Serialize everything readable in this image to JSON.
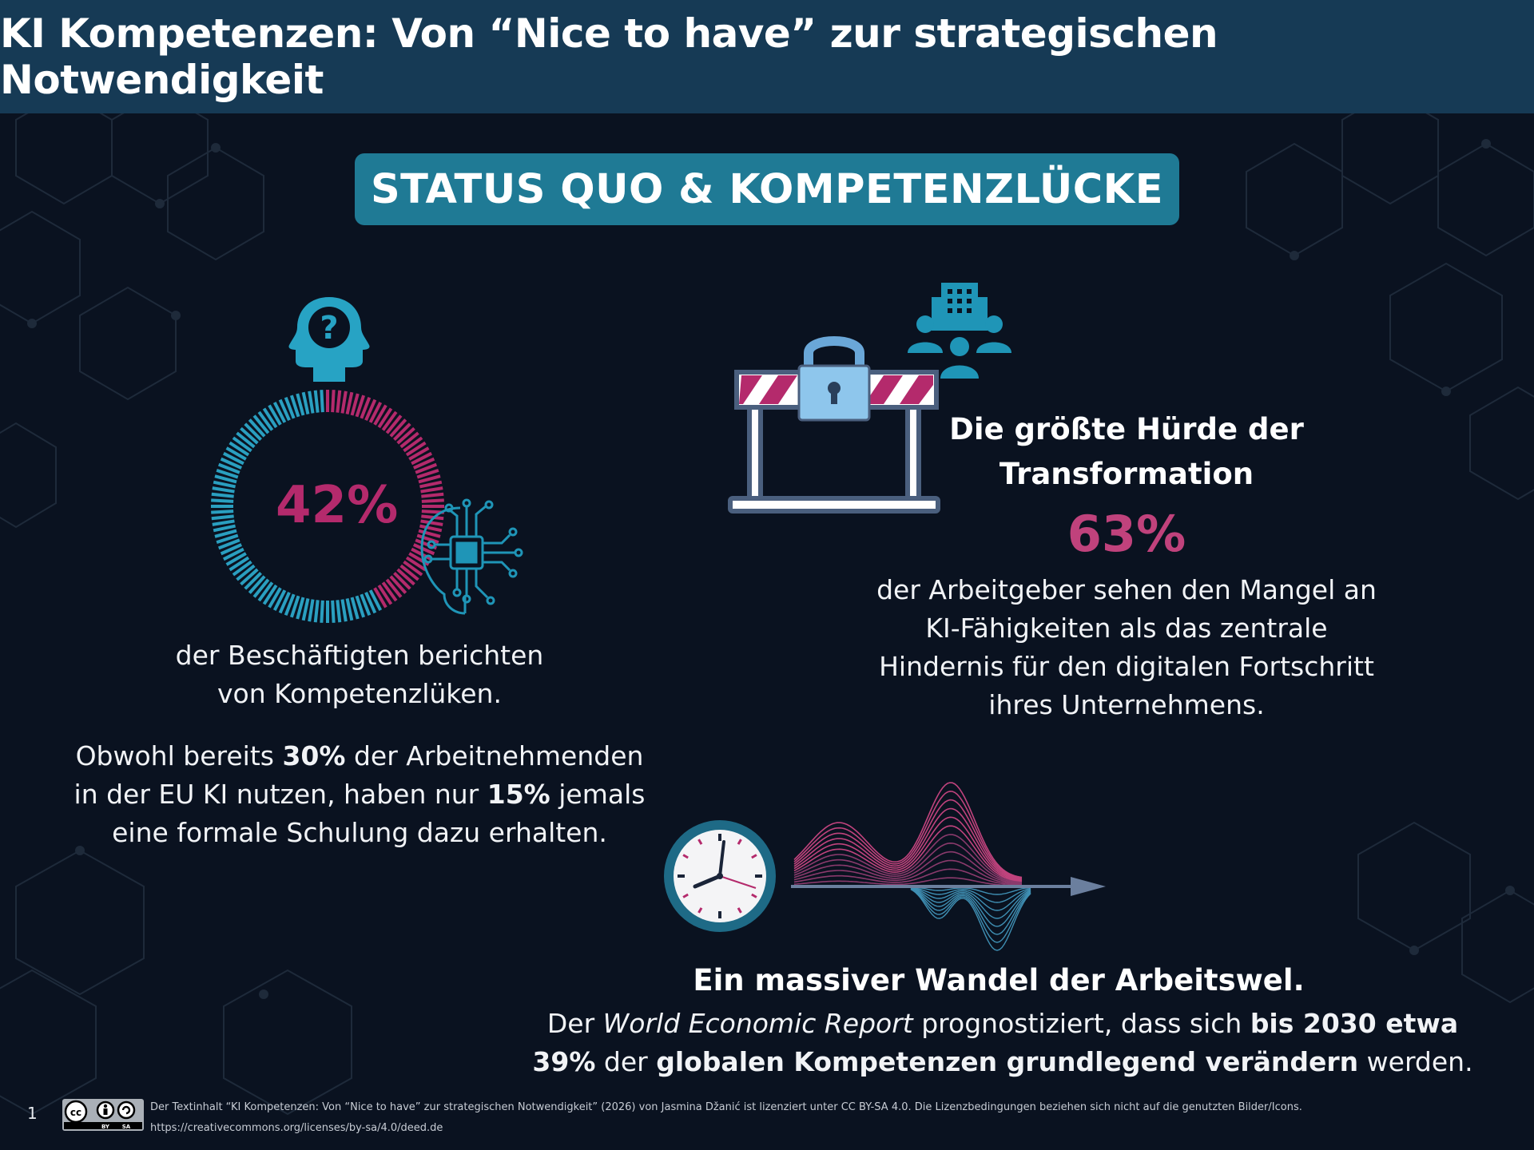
{
  "header": {
    "title": "KI Kompetenzen: Von “Nice to have” zur strategischen Notwendigkeit"
  },
  "section": {
    "title": "STATUS QUO & KOMPETENZLÜCKE"
  },
  "left": {
    "percent": "42%",
    "percent_value": 0.42,
    "caption_line1": "der Beschäftigten berichten",
    "caption_line2": "von Kompetenzlüken.",
    "para_line1_pre": "Obwohl bereits ",
    "para_line1_bold": "30%",
    "para_line1_post": " der Arbeitnehmenden",
    "para_line2_pre": "in der EU KI nutzen, haben nur ",
    "para_line2_bold": "15%",
    "para_line2_post": " jemals",
    "para_line3": "eine formale Schulung dazu erhalten."
  },
  "right": {
    "title_line1": "Die größte Hürde der",
    "title_line2": "Transformation",
    "percent": "63%",
    "line1": "der Arbeitgeber sehen den Mangel an",
    "line2": "KI-Fähigkeiten als das zentrale",
    "line3": "Hindernis für den digitalen Fortschritt",
    "line4": "ihres Unternehmens."
  },
  "bottom": {
    "title": "Ein massiver Wandel der Arbeitswel.",
    "l1_a": "Der ",
    "l1_italic": "World Economic Report",
    "l1_b": " prognostiziert, dass sich ",
    "l1_bold": "bis 2030 etwa",
    "l2_bold1": "39%",
    "l2_a": " der ",
    "l2_bold2": "globalen Kompetenzen grundlegend verändern",
    "l2_b": " werden."
  },
  "footer": {
    "page_number": "1",
    "license_by": "BY",
    "license_sa": "SA",
    "cc": "cc",
    "text": "Der Textinhalt “KI Kompetenzen: Von “Nice to have” zur strategischen Notwendigkeit” (2026) von Jasmina Džanić ist lizenziert unter CC BY-SA 4.0. Die Lizenzbedingungen beziehen sich nicht auf die genutzten Bilder/Icons.",
    "url": "https://creativecommons.org/licenses/by-sa/4.0/deed.de"
  },
  "colors": {
    "background": "#0a1220",
    "header": "#163a55",
    "badge": "#1f7a95",
    "teal": "#2a9fc0",
    "magenta": "#b42a6c"
  },
  "icons": [
    "head-question-icon",
    "donut-ring-icon",
    "circuit-brain-icon",
    "barrier-lock-icon",
    "company-people-icon",
    "clock-icon",
    "wave-graph-icon",
    "cc-license-icon"
  ]
}
